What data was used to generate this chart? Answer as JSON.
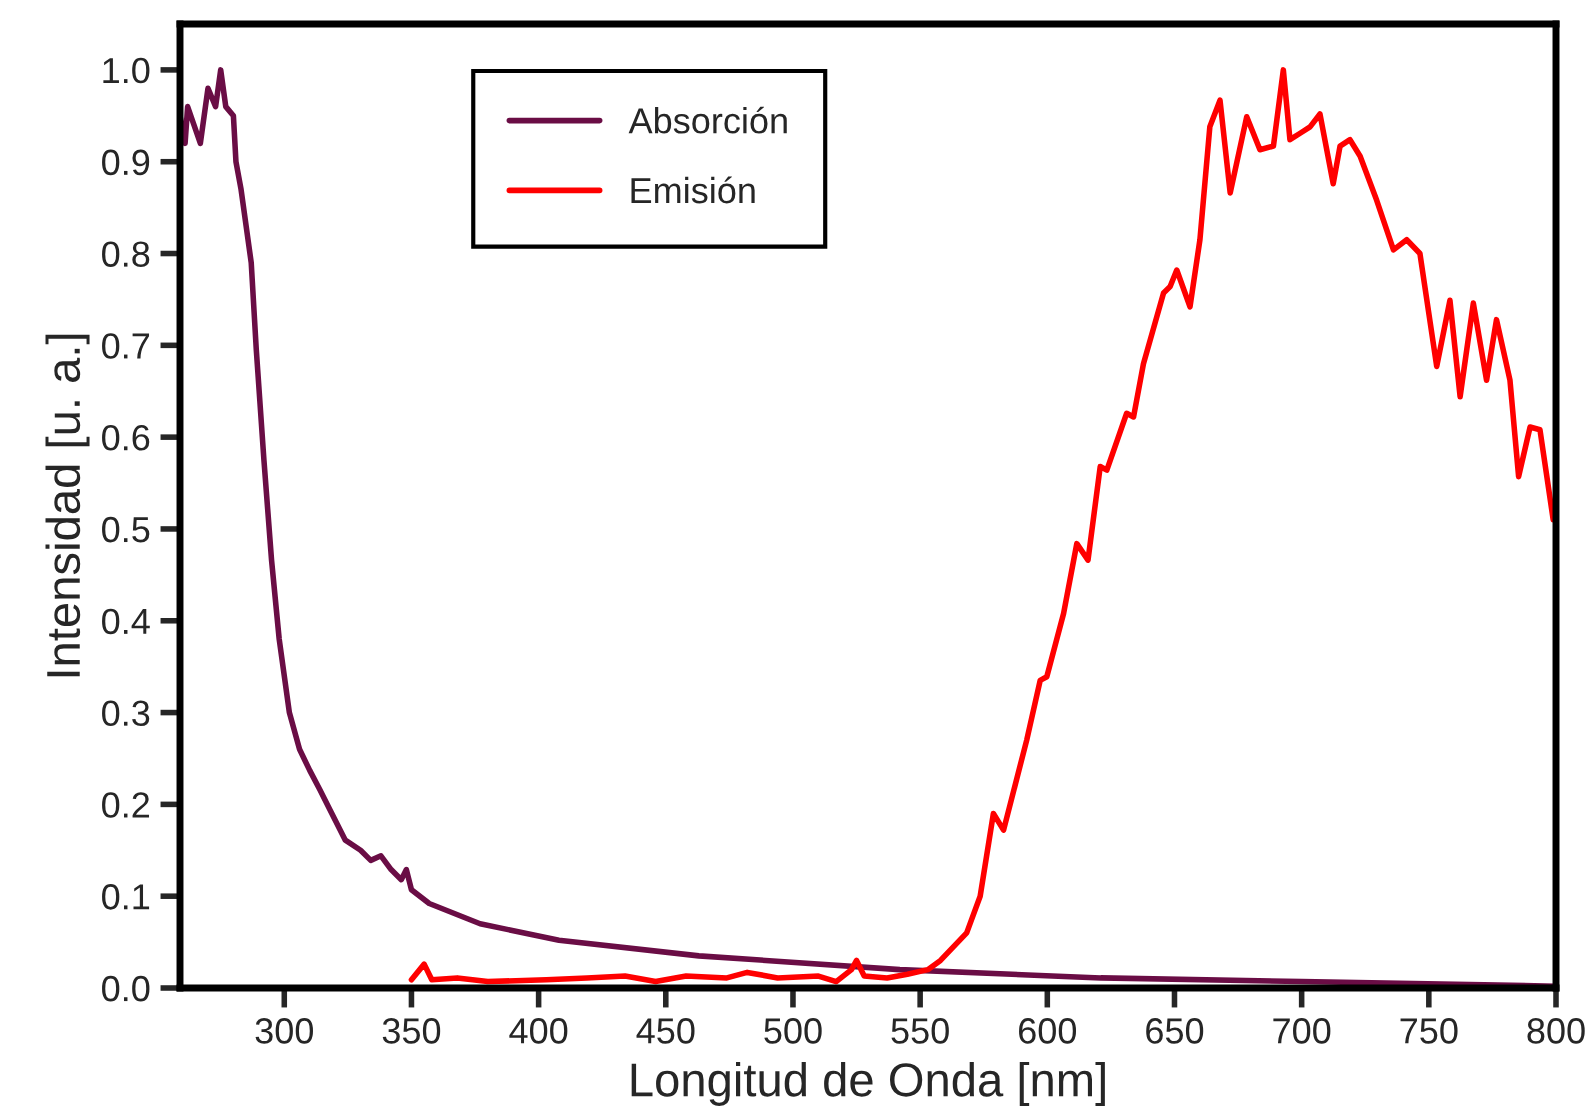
{
  "chart_data": {
    "type": "line",
    "xlabel": "Longitud de Onda [nm]",
    "ylabel": "Intensidad [u. a.]",
    "xlim": [
      259,
      800
    ],
    "ylim": [
      0,
      1.05
    ],
    "xticks": [
      300,
      350,
      400,
      450,
      500,
      550,
      600,
      650,
      700,
      750,
      800
    ],
    "yticks": [
      {
        "value": 0,
        "label": "0.0"
      },
      0.1,
      0.2,
      0.3,
      0.4,
      0.5,
      0.6,
      0.7,
      0.8,
      0.9,
      {
        "value": 1,
        "label": "1.0"
      }
    ],
    "grid": false,
    "legend": "top left",
    "line_style": "solid",
    "marker": "none",
    "series": [
      {
        "name": "Absorción",
        "color": "#6a0d45",
        "x": [
          259,
          261,
          262,
          267,
          270,
          273,
          275,
          277,
          280,
          281,
          283,
          287,
          289,
          292,
          295,
          298,
          302,
          306,
          310,
          314,
          318,
          324,
          330,
          334,
          338,
          342,
          346,
          348,
          350,
          357,
          377,
          408,
          463,
          542,
          621,
          700,
          800
        ],
        "values": [
          0.95,
          0.92,
          0.96,
          0.92,
          0.98,
          0.96,
          1.0,
          0.96,
          0.95,
          0.9,
          0.87,
          0.79,
          0.695,
          0.575,
          0.466,
          0.38,
          0.3,
          0.26,
          0.237,
          0.216,
          0.194,
          0.161,
          0.15,
          0.139,
          0.144,
          0.129,
          0.118,
          0.129,
          0.107,
          0.092,
          0.07,
          0.052,
          0.035,
          0.02,
          0.011,
          0.007,
          0.002
        ]
      },
      {
        "name": "Emisión",
        "color": "#ff0000",
        "x": [
          350,
          355,
          358,
          368,
          380,
          403,
          419,
          434,
          446,
          458,
          474,
          482,
          494,
          510,
          517,
          523,
          525,
          528,
          537,
          545,
          553,
          558,
          568.3,
          573.6,
          578.8,
          582.8,
          591.9,
          597.2,
          599.8,
          606.4,
          611.6,
          616,
          620.8,
          623.4,
          631.2,
          633.9,
          637.8,
          645.7,
          648.3,
          650.9,
          656.1,
          660,
          663.9,
          667.9,
          671.9,
          678.4,
          683.6,
          688.9,
          692.8,
          695.4,
          699.4,
          703.3,
          707.2,
          712.4,
          715.1,
          719,
          723,
          729.5,
          736.1,
          741.3,
          746.5,
          753.1,
          758.3,
          762.3,
          767.5,
          772.7,
          776.6,
          781.9,
          785.3,
          789.8,
          793.7,
          798.9
        ],
        "values": [
          0.009,
          0.026,
          0.009,
          0.011,
          0.007,
          0.009,
          0.011,
          0.013,
          0.007,
          0.013,
          0.011,
          0.017,
          0.011,
          0.013,
          0.007,
          0.02,
          0.03,
          0.013,
          0.011,
          0.015,
          0.02,
          0.03,
          0.06,
          0.1,
          0.19,
          0.172,
          0.27,
          0.335,
          0.339,
          0.408,
          0.484,
          0.466,
          0.568,
          0.564,
          0.626,
          0.622,
          0.68,
          0.757,
          0.764,
          0.782,
          0.742,
          0.815,
          0.938,
          0.967,
          0.866,
          0.949,
          0.913,
          0.917,
          1.0,
          0.924,
          0.931,
          0.938,
          0.952,
          0.876,
          0.917,
          0.924,
          0.906,
          0.858,
          0.804,
          0.815,
          0.8,
          0.677,
          0.749,
          0.644,
          0.746,
          0.662,
          0.728,
          0.662,
          0.557,
          0.611,
          0.608,
          0.51
        ]
      }
    ]
  }
}
